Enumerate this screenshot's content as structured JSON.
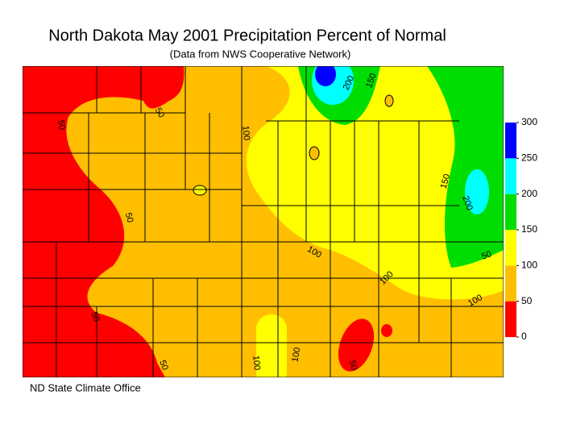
{
  "title": "North Dakota May 2001 Precipitation Percent of Normal",
  "subtitle": "(Data from NWS Cooperative Network)",
  "footer": "ND State Climate Office",
  "legend": {
    "ticks": [
      0,
      50,
      100,
      150,
      200,
      250,
      300
    ],
    "colors": [
      "#ff0000",
      "#ffbf00",
      "#ffff00",
      "#00dd00",
      "#00ffff",
      "#0000ff"
    ]
  },
  "contour_labels": [
    50,
    50,
    50,
    50,
    50,
    100,
    100,
    100,
    100,
    100,
    100,
    50,
    50,
    150,
    200,
    200,
    150
  ]
}
